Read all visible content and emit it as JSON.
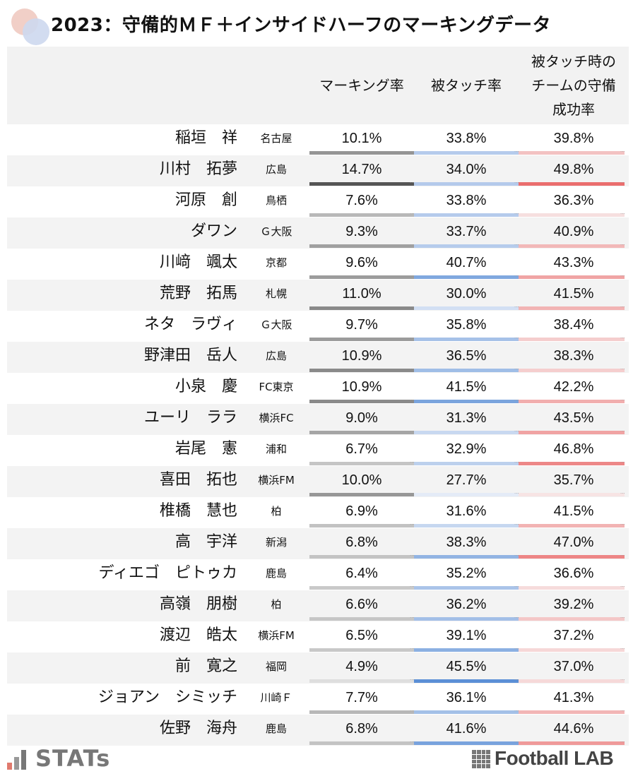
{
  "title": "2023：守備的ＭＦ＋インサイドハーフのマーキングデータ",
  "columns": {
    "marking": "マーキング率",
    "touched": "被タッチ率",
    "defense_line1": "被タッチ時の",
    "defense_line2": "チームの守備",
    "defense_line3": "成功率"
  },
  "colors": {
    "marking_bar_scale": "#555555",
    "touched_bar_scale": "#5b8fd6",
    "defense_bar_scale": "#ea6e6e"
  },
  "rows": [
    {
      "name": "稲垣　祥",
      "team": "名古屋",
      "marking": "10.1%",
      "touched": "33.8%",
      "defense": "39.8%"
    },
    {
      "name": "川村　拓夢",
      "team": "広島",
      "marking": "14.7%",
      "touched": "34.0%",
      "defense": "49.8%"
    },
    {
      "name": "河原　創",
      "team": "鳥栖",
      "marking": "7.6%",
      "touched": "33.8%",
      "defense": "36.3%"
    },
    {
      "name": "ダワン",
      "team": "Ｇ大阪",
      "marking": "9.3%",
      "touched": "33.7%",
      "defense": "40.9%"
    },
    {
      "name": "川﨑　颯太",
      "team": "京都",
      "marking": "9.6%",
      "touched": "40.7%",
      "defense": "43.3%"
    },
    {
      "name": "荒野　拓馬",
      "team": "札幌",
      "marking": "11.0%",
      "touched": "30.0%",
      "defense": "41.5%"
    },
    {
      "name": "ネタ　ラヴィ",
      "team": "Ｇ大阪",
      "marking": "9.7%",
      "touched": "35.8%",
      "defense": "38.4%"
    },
    {
      "name": "野津田　岳人",
      "team": "広島",
      "marking": "10.9%",
      "touched": "36.5%",
      "defense": "38.3%"
    },
    {
      "name": "小泉　慶",
      "team": "FC東京",
      "marking": "10.9%",
      "touched": "41.5%",
      "defense": "42.2%"
    },
    {
      "name": "ユーリ　ララ",
      "team": "横浜FC",
      "marking": "9.0%",
      "touched": "31.3%",
      "defense": "43.5%"
    },
    {
      "name": "岩尾　憲",
      "team": "浦和",
      "marking": "6.7%",
      "touched": "32.9%",
      "defense": "46.8%"
    },
    {
      "name": "喜田　拓也",
      "team": "横浜FM",
      "marking": "10.0%",
      "touched": "27.7%",
      "defense": "35.7%"
    },
    {
      "name": "椎橋　慧也",
      "team": "柏",
      "marking": "6.9%",
      "touched": "31.6%",
      "defense": "41.5%"
    },
    {
      "name": "高　宇洋",
      "team": "新潟",
      "marking": "6.8%",
      "touched": "38.3%",
      "defense": "47.0%"
    },
    {
      "name": "ディエゴ　ピトゥカ",
      "team": "鹿島",
      "marking": "6.4%",
      "touched": "35.2%",
      "defense": "36.6%"
    },
    {
      "name": "高嶺　朋樹",
      "team": "柏",
      "marking": "6.6%",
      "touched": "36.2%",
      "defense": "39.2%"
    },
    {
      "name": "渡辺　皓太",
      "team": "横浜FM",
      "marking": "6.5%",
      "touched": "39.1%",
      "defense": "37.2%"
    },
    {
      "name": "前　寛之",
      "team": "福岡",
      "marking": "4.9%",
      "touched": "45.5%",
      "defense": "37.0%"
    },
    {
      "name": "ジョアン　シミッチ",
      "team": "川崎Ｆ",
      "marking": "7.7%",
      "touched": "36.1%",
      "defense": "41.3%"
    },
    {
      "name": "佐野　海舟",
      "team": "鹿島",
      "marking": "6.8%",
      "touched": "41.6%",
      "defense": "44.6%"
    }
  ],
  "footer": {
    "stats_logo": "STATs",
    "fl_logo": "Football LAB"
  }
}
